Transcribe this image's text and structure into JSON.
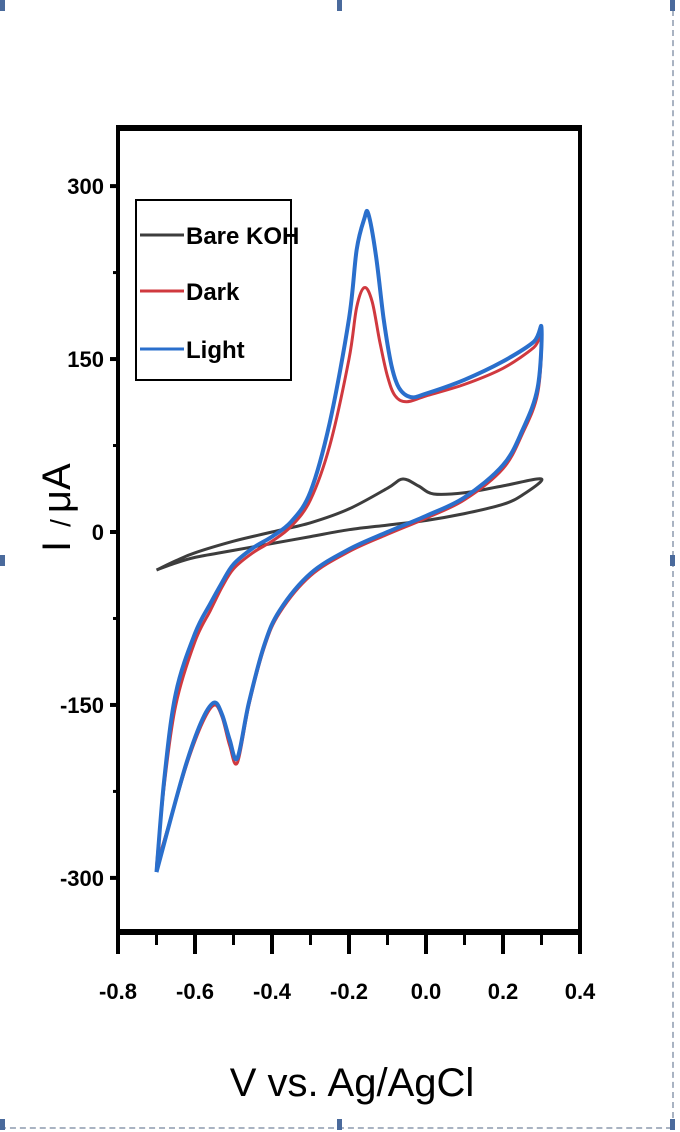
{
  "chart_data": {
    "type": "line",
    "title": "",
    "xlabel": "V vs. Ag/AgCl",
    "ylabel": "I / μA",
    "ylabel_parts": {
      "symbol": "I",
      "slash": "/",
      "unit": "μA"
    },
    "xlim": [
      -0.8,
      0.4
    ],
    "ylim": [
      -350,
      350
    ],
    "x_ticks": [
      -0.8,
      -0.6,
      -0.4,
      -0.2,
      0.0,
      0.2,
      0.4
    ],
    "x_tick_labels": [
      "-0.8",
      "-0.6",
      "-0.4",
      "-0.2",
      "0.0",
      "0.2",
      "0.4"
    ],
    "y_ticks": [
      300,
      150,
      0,
      -150,
      -300
    ],
    "y_tick_labels": [
      "300",
      "150",
      "0",
      "-150",
      "-300"
    ],
    "grid": false,
    "legend_position": "upper-left",
    "series": [
      {
        "name": "Bare KOH",
        "color": "#3d3d3d",
        "x": [
          -0.7,
          -0.65,
          -0.6,
          -0.5,
          -0.4,
          -0.3,
          -0.2,
          -0.1,
          -0.06,
          -0.02,
          0.02,
          0.1,
          0.2,
          0.3,
          0.25,
          0.2,
          0.1,
          0.0,
          -0.1,
          -0.2,
          -0.3,
          -0.4,
          -0.5,
          -0.6,
          -0.66,
          -0.7
        ],
        "y": [
          -33,
          -25,
          -18,
          -8,
          0,
          8,
          20,
          38,
          46,
          40,
          33,
          34,
          40,
          46,
          32,
          24,
          16,
          10,
          6,
          2,
          -4,
          -10,
          -16,
          -22,
          -28,
          -33
        ]
      },
      {
        "name": "Dark",
        "color": "#d0393f",
        "x": [
          -0.7,
          -0.68,
          -0.65,
          -0.6,
          -0.56,
          -0.53,
          -0.5,
          -0.45,
          -0.4,
          -0.35,
          -0.3,
          -0.25,
          -0.2,
          -0.18,
          -0.16,
          -0.14,
          -0.12,
          -0.1,
          -0.08,
          -0.05,
          0.0,
          0.1,
          0.2,
          0.28,
          0.3,
          0.29,
          0.25,
          0.2,
          0.1,
          0.0,
          -0.1,
          -0.2,
          -0.3,
          -0.38,
          -0.42,
          -0.46,
          -0.49,
          -0.51,
          -0.53,
          -0.55,
          -0.58,
          -0.62,
          -0.66,
          -0.7
        ],
        "y": [
          -290,
          -220,
          -150,
          -95,
          -68,
          -48,
          -32,
          -18,
          -8,
          5,
          28,
          75,
          150,
          195,
          212,
          200,
          165,
          135,
          118,
          113,
          118,
          128,
          142,
          160,
          170,
          120,
          85,
          55,
          28,
          12,
          -2,
          -17,
          -38,
          -70,
          -100,
          -150,
          -200,
          -185,
          -160,
          -150,
          -165,
          -200,
          -245,
          -290
        ]
      },
      {
        "name": "Light",
        "color": "#2a6fcc",
        "x": [
          -0.7,
          -0.68,
          -0.65,
          -0.6,
          -0.56,
          -0.53,
          -0.5,
          -0.45,
          -0.4,
          -0.35,
          -0.3,
          -0.25,
          -0.2,
          -0.18,
          -0.16,
          -0.15,
          -0.13,
          -0.11,
          -0.09,
          -0.07,
          -0.04,
          0.0,
          0.1,
          0.2,
          0.28,
          0.3,
          0.29,
          0.25,
          0.2,
          0.1,
          0.0,
          -0.1,
          -0.2,
          -0.3,
          -0.38,
          -0.42,
          -0.46,
          -0.49,
          -0.51,
          -0.53,
          -0.55,
          -0.58,
          -0.62,
          -0.66,
          -0.7
        ],
        "y": [
          -295,
          -215,
          -140,
          -88,
          -62,
          -44,
          -28,
          -14,
          -4,
          9,
          35,
          95,
          185,
          245,
          272,
          276,
          240,
          185,
          145,
          125,
          117,
          120,
          132,
          148,
          165,
          177,
          125,
          88,
          58,
          30,
          14,
          0,
          -15,
          -36,
          -68,
          -98,
          -148,
          -196,
          -180,
          -158,
          -148,
          -162,
          -198,
          -245,
          -295
        ]
      }
    ]
  },
  "legend": {
    "items": [
      {
        "label": "Bare KOH",
        "color": "#3d3d3d"
      },
      {
        "label": "Dark",
        "color": "#d0393f"
      },
      {
        "label": "Light",
        "color": "#2a6fcc"
      }
    ]
  },
  "selection_handles": {
    "color": "#4a6a9c",
    "border_color": "#a9b3c2"
  }
}
